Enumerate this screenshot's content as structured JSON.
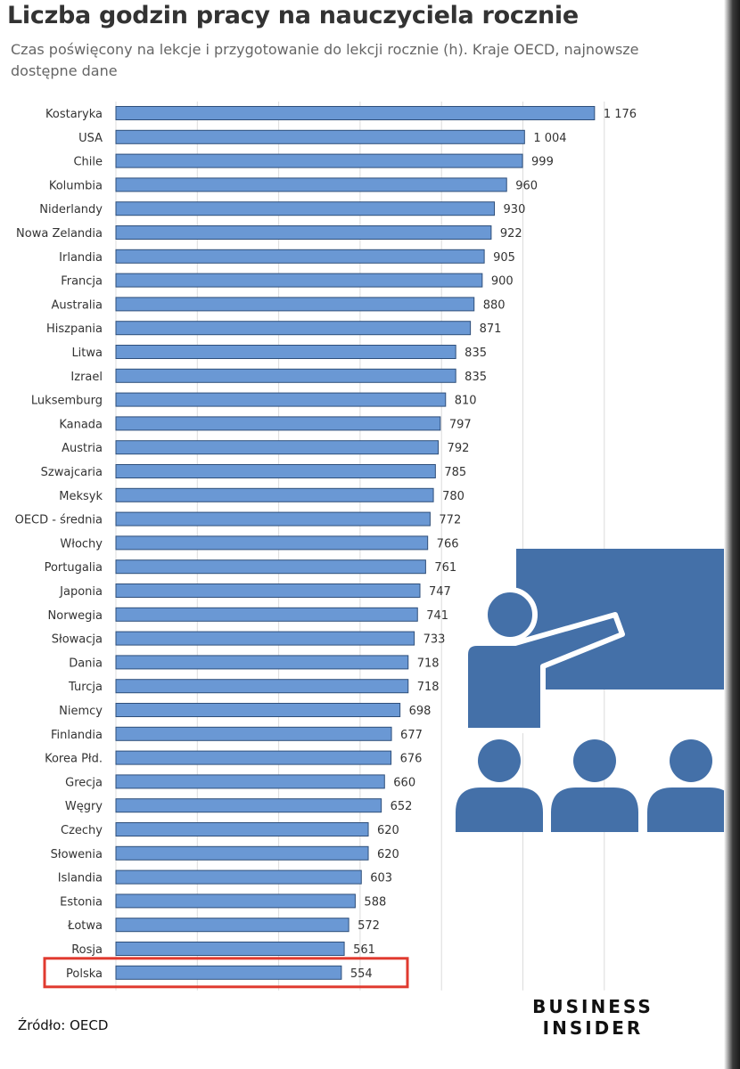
{
  "header": {
    "title": "Liczba godzin pracy na nauczyciela rocznie",
    "subtitle": "Czas poświęcony na lekcje i przygotowanie do lekcji rocznie (h). Kraje OECD, najnowsze dostępne dane"
  },
  "chart_data": {
    "type": "bar",
    "orientation": "horizontal",
    "grid": true,
    "xlim": [
      0,
      1300
    ],
    "bar_color": "#6a98d4",
    "highlight_color": "#e03a2f",
    "highlight_category": "Polska",
    "categories": [
      "Kostaryka",
      "USA",
      "Chile",
      "Kolumbia",
      "Niderlandy",
      "Nowa Zelandia",
      "Irlandia",
      "Francja",
      "Australia",
      "Hiszpania",
      "Litwa",
      "Izrael",
      "Luksemburg",
      "Kanada",
      "Austria",
      "Szwajcaria",
      "Meksyk",
      "OECD - średnia",
      "Włochy",
      "Portugalia",
      "Japonia",
      "Norwegia",
      "Słowacja",
      "Dania",
      "Turcja",
      "Niemcy",
      "Finlandia",
      "Korea Płd.",
      "Grecja",
      "Węgry",
      "Czechy",
      "Słowenia",
      "Islandia",
      "Estonia",
      "Łotwa",
      "Rosja",
      "Polska"
    ],
    "values": [
      1176,
      1004,
      999,
      960,
      930,
      922,
      905,
      900,
      880,
      871,
      835,
      835,
      810,
      797,
      792,
      785,
      780,
      772,
      766,
      761,
      747,
      741,
      733,
      718,
      718,
      698,
      677,
      676,
      660,
      652,
      620,
      620,
      603,
      588,
      572,
      561,
      554
    ],
    "value_labels": [
      "1 176",
      "1 004",
      "999",
      "960",
      "930",
      "922",
      "905",
      "900",
      "880",
      "871",
      "835",
      "835",
      "810",
      "797",
      "792",
      "785",
      "780",
      "772",
      "766",
      "761",
      "747",
      "741",
      "733",
      "718",
      "718",
      "698",
      "677",
      "676",
      "660",
      "652",
      "620",
      "620",
      "603",
      "588",
      "572",
      "561",
      "554"
    ]
  },
  "illustration": {
    "icon": "teacher-classroom-icon",
    "color": "#4470a8"
  },
  "footer": {
    "source": "Źródło: OECD",
    "brand_line1": "BUSINESS",
    "brand_line2": "INSIDER"
  }
}
